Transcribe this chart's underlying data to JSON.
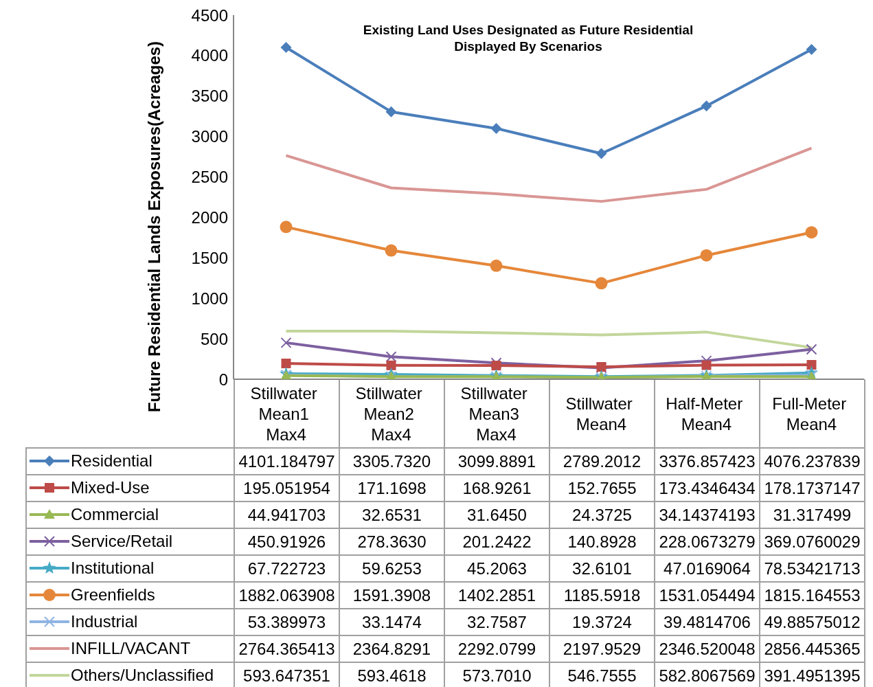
{
  "chart_data": {
    "type": "line",
    "title": "Existing Land Uses Designated as Future Residential\nDisplayed By Scenarios",
    "ylabel": "Future Residential Lands Exposures(Acreages)",
    "categories": [
      "Stillwater Mean1 Max4",
      "Stillwater Mean2 Max4",
      "Stillwater Mean3 Max4",
      "Stillwater Mean4",
      "Half-Meter Mean4",
      "Full-Meter Mean4"
    ],
    "ylim": [
      0,
      4500
    ],
    "yticks": [
      0,
      500,
      1000,
      1500,
      2000,
      2500,
      3000,
      3500,
      4000,
      4500
    ],
    "grid": false,
    "legend": "bottom",
    "line_style": "solid",
    "series": [
      {
        "name": "Residential",
        "color": "#4a7ebb",
        "marker": "diamond",
        "values": [
          4101.184797,
          3305.732,
          3099.8891,
          2789.2012,
          3376.857423,
          4076.237839
        ],
        "value_labels": [
          "4101.184797",
          "3305.7320",
          "3099.8891",
          "2789.2012",
          "3376.857423",
          "4076.237839"
        ]
      },
      {
        "name": "Mixed-Use",
        "color": "#be4b48",
        "marker": "square",
        "values": [
          195.051954,
          171.1698,
          168.9261,
          152.7655,
          173.4346434,
          178.1737147
        ],
        "value_labels": [
          "195.051954",
          "171.1698",
          "168.9261",
          "152.7655",
          "173.4346434",
          "178.1737147"
        ]
      },
      {
        "name": "Commercial",
        "color": "#98b954",
        "marker": "triangle",
        "values": [
          44.941703,
          32.6531,
          31.645,
          24.3725,
          34.14374193,
          31.317499
        ],
        "value_labels": [
          "44.941703",
          "32.6531",
          "31.6450",
          "24.3725",
          "34.14374193",
          "31.317499"
        ]
      },
      {
        "name": "Service/Retail",
        "color": "#7d60a0",
        "marker": "cross",
        "values": [
          450.91926,
          278.363,
          201.2422,
          140.8928,
          228.0673279,
          369.0760029
        ],
        "value_labels": [
          "450.91926",
          "278.3630",
          "201.2422",
          "140.8928",
          "228.0673279",
          "369.0760029"
        ]
      },
      {
        "name": "Institutional",
        "color": "#46aac5",
        "marker": "star",
        "values": [
          67.722723,
          59.6253,
          45.2063,
          32.6101,
          47.0169064,
          78.53421713
        ],
        "value_labels": [
          "67.722723",
          "59.6253",
          "45.2063",
          "32.6101",
          "47.0169064",
          "78.53421713"
        ]
      },
      {
        "name": "Greenfields",
        "color": "#e5873a",
        "marker": "circle",
        "values": [
          1882.063908,
          1591.3908,
          1402.2851,
          1185.5918,
          1531.054494,
          1815.164553
        ],
        "value_labels": [
          "1882.063908",
          "1591.3908",
          "1402.2851",
          "1185.5918",
          "1531.054494",
          "1815.164553"
        ]
      },
      {
        "name": "Industrial",
        "color": "#8eb4e3",
        "marker": "cross",
        "values": [
          53.389973,
          33.1474,
          32.7587,
          19.3724,
          39.4814706,
          49.88575012
        ],
        "value_labels": [
          "53.389973",
          "33.1474",
          "32.7587",
          "19.3724",
          "39.4814706",
          "49.88575012"
        ]
      },
      {
        "name": "INFILL/VACANT",
        "color": "#d99694",
        "marker": "none",
        "values": [
          2764.365413,
          2364.8291,
          2292.0799,
          2197.9529,
          2346.520048,
          2856.445365
        ],
        "value_labels": [
          "2764.365413",
          "2364.8291",
          "2292.0799",
          "2197.9529",
          "2346.520048",
          "2856.445365"
        ]
      },
      {
        "name": "Others/Unclassified",
        "color": "#c3d69b",
        "marker": "none",
        "values": [
          593.647351,
          593.4618,
          573.701,
          546.7555,
          582.8067569,
          391.4951395
        ],
        "value_labels": [
          "593.647351",
          "593.4618",
          "573.7010",
          "546.7555",
          "582.8067569",
          "391.4951395"
        ]
      }
    ]
  }
}
